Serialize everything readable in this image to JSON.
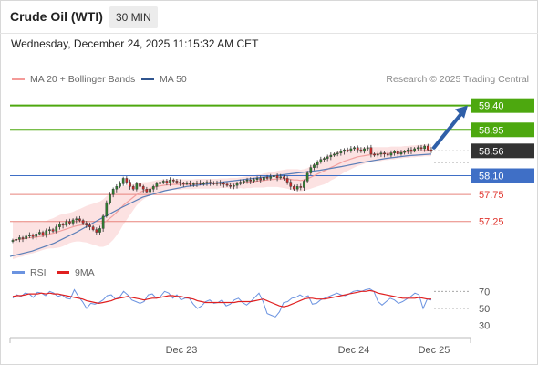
{
  "header": {
    "instrument": "Crude Oil (WTI)",
    "timeframe": "30 MIN",
    "datetime": "Wednesday, December 24, 2025 11:15:32 AM CET"
  },
  "legend": {
    "ma20_bb": "MA 20 + Bollinger Bands",
    "ma50": "MA 50",
    "credit": "Research © 2025 Trading Central"
  },
  "rsi_legend": {
    "rsi": "RSI",
    "ma9": "9MA"
  },
  "colors": {
    "green": "#4da80f",
    "blue_line": "#3f6fc6",
    "red_line": "#e8837c",
    "candle_up": "#2f7d2f",
    "candle_down": "#c62828",
    "bb_fill": "#fbd5d5",
    "ma20": "#f2a0a0",
    "ma50": "#5b7fb8",
    "rsi": "#6b93e0",
    "rsi_ma": "#e02020",
    "arrow": "#2f5fa8",
    "current_box": "#333333"
  },
  "chart_data": [
    {
      "type": "candlestick",
      "title": "Crude Oil (WTI)",
      "timeframe": "30 MIN",
      "x_labels": [
        "Dec 23",
        "Dec 24",
        "Dec 25"
      ],
      "ylim": [
        56.45,
        59.75
      ],
      "current_price": 58.56,
      "levels": [
        {
          "value": 59.4,
          "label": "59.40",
          "color": "#4da80f",
          "kind": "target"
        },
        {
          "value": 58.95,
          "label": "58.95",
          "color": "#4da80f",
          "kind": "target"
        },
        {
          "value": 58.56,
          "label": "58.56",
          "color": "#333333",
          "kind": "current"
        },
        {
          "value": 58.1,
          "label": "58.10",
          "color": "#3f6fc6",
          "kind": "pivot"
        },
        {
          "value": 57.75,
          "label": "57.75",
          "color": "#e8837c",
          "kind": "support"
        },
        {
          "value": 57.25,
          "label": "57.25",
          "color": "#e8837c",
          "kind": "support"
        }
      ],
      "arrow": {
        "from": 58.62,
        "to": 59.4,
        "direction": "up"
      },
      "closes": [
        56.9,
        56.92,
        56.95,
        56.93,
        56.98,
        57.0,
        56.97,
        57.02,
        57.05,
        57.0,
        57.08,
        57.1,
        57.07,
        57.15,
        57.2,
        57.18,
        57.25,
        57.22,
        57.28,
        57.3,
        57.27,
        57.22,
        57.18,
        57.15,
        57.1,
        57.05,
        57.12,
        57.35,
        57.6,
        57.75,
        57.85,
        57.9,
        57.95,
        58.05,
        57.98,
        57.9,
        57.85,
        57.95,
        57.9,
        57.85,
        57.8,
        57.85,
        57.9,
        57.95,
        57.98,
        58.0,
        57.97,
        58.02,
        58.0,
        57.98,
        57.96,
        57.95,
        57.96,
        57.94,
        57.95,
        57.97,
        57.95,
        57.96,
        57.98,
        57.97,
        57.95,
        57.97,
        57.96,
        57.94,
        57.92,
        57.9,
        57.92,
        57.95,
        57.98,
        58.0,
        58.02,
        58.0,
        58.03,
        58.05,
        58.02,
        58.07,
        58.05,
        58.08,
        58.1,
        58.06,
        58.08,
        58.05,
        57.98,
        57.9,
        57.85,
        57.9,
        57.88,
        58.0,
        58.15,
        58.25,
        58.3,
        58.35,
        58.4,
        58.42,
        58.45,
        58.48,
        58.5,
        58.52,
        58.55,
        58.58,
        58.56,
        58.6,
        58.62,
        58.58,
        58.55,
        58.6,
        58.62,
        58.5,
        58.48,
        58.5,
        58.52,
        58.5,
        58.48,
        58.52,
        58.55,
        58.5,
        58.53,
        58.55,
        58.58,
        58.56,
        58.6,
        58.62,
        58.6,
        58.65,
        58.58,
        58.56
      ],
      "ma20": [
        56.9,
        56.91,
        56.92,
        56.92,
        56.94,
        56.95,
        56.95,
        56.96,
        56.97,
        56.98,
        57.0,
        57.02,
        57.03,
        57.05,
        57.07,
        57.09,
        57.11,
        57.13,
        57.15,
        57.17,
        57.18,
        57.19,
        57.2,
        57.2,
        57.2,
        57.2,
        57.2,
        57.22,
        57.26,
        57.31,
        57.36,
        57.42,
        57.48,
        57.55,
        57.6,
        57.65,
        57.7,
        57.75,
        57.79,
        57.82,
        57.84,
        57.86,
        57.88,
        57.9,
        57.91,
        57.92,
        57.93,
        57.93,
        57.94,
        57.94,
        57.94,
        57.94,
        57.94,
        57.94,
        57.94,
        57.95,
        57.95,
        57.95,
        57.95,
        57.95,
        57.95,
        57.95,
        57.96,
        57.96,
        57.96,
        57.96,
        57.96,
        57.96,
        57.97,
        57.97,
        57.98,
        57.98,
        57.99,
        58.0,
        58.0,
        58.01,
        58.02,
        58.03,
        58.03,
        58.04,
        58.04,
        58.04,
        58.04,
        58.03,
        58.02,
        58.02,
        58.01,
        58.02,
        58.04,
        58.07,
        58.1,
        58.13,
        58.16,
        58.19,
        58.22,
        58.25,
        58.28,
        58.31,
        58.34,
        58.37,
        58.39,
        58.41,
        58.43,
        58.45,
        58.46,
        58.47,
        58.48,
        58.49,
        58.5,
        58.5,
        58.5,
        58.51,
        58.51,
        58.52,
        58.52,
        58.53,
        58.53,
        58.54,
        58.54,
        58.55,
        58.55,
        58.56,
        58.56,
        58.57,
        58.57,
        58.57
      ],
      "bb_width": [
        0.35,
        0.34,
        0.33,
        0.32,
        0.31,
        0.3,
        0.29,
        0.28,
        0.27,
        0.26,
        0.26,
        0.27,
        0.28,
        0.29,
        0.3,
        0.3,
        0.29,
        0.28,
        0.28,
        0.29,
        0.3,
        0.32,
        0.34,
        0.36,
        0.38,
        0.4,
        0.42,
        0.44,
        0.46,
        0.46,
        0.45,
        0.43,
        0.4,
        0.36,
        0.32,
        0.28,
        0.24,
        0.2,
        0.18,
        0.16,
        0.14,
        0.13,
        0.12,
        0.12,
        0.11,
        0.11,
        0.1,
        0.1,
        0.1,
        0.1,
        0.1,
        0.09,
        0.09,
        0.09,
        0.09,
        0.09,
        0.09,
        0.09,
        0.09,
        0.09,
        0.09,
        0.09,
        0.09,
        0.09,
        0.09,
        0.1,
        0.1,
        0.1,
        0.1,
        0.11,
        0.11,
        0.11,
        0.11,
        0.12,
        0.12,
        0.13,
        0.13,
        0.14,
        0.14,
        0.15,
        0.16,
        0.17,
        0.18,
        0.19,
        0.2,
        0.2,
        0.2,
        0.2,
        0.2,
        0.21,
        0.22,
        0.23,
        0.24,
        0.25,
        0.25,
        0.24,
        0.24,
        0.23,
        0.22,
        0.21,
        0.2,
        0.19,
        0.18,
        0.17,
        0.16,
        0.15,
        0.14,
        0.14,
        0.13,
        0.13,
        0.13,
        0.12,
        0.12,
        0.12,
        0.12,
        0.11,
        0.11,
        0.11,
        0.11,
        0.11,
        0.11,
        0.11,
        0.11,
        0.11,
        0.11,
        0.11
      ],
      "ma50_points": [
        [
          0,
          56.6
        ],
        [
          20,
          56.7
        ],
        [
          40,
          56.85
        ],
        [
          60,
          57.05
        ],
        [
          80,
          57.28
        ],
        [
          100,
          57.5
        ],
        [
          120,
          57.7
        ],
        [
          140,
          57.82
        ],
        [
          160,
          57.9
        ],
        [
          180,
          57.95
        ],
        [
          200,
          58.0
        ],
        [
          220,
          58.05
        ],
        [
          240,
          58.1
        ],
        [
          260,
          58.15
        ],
        [
          280,
          58.2
        ],
        [
          300,
          58.27
        ],
        [
          320,
          58.35
        ],
        [
          340,
          58.42
        ],
        [
          360,
          58.47
        ],
        [
          381,
          58.5
        ]
      ]
    },
    {
      "type": "line",
      "title": "RSI",
      "series": [
        {
          "name": "RSI",
          "values": [
            62,
            66,
            64,
            68,
            67,
            63,
            69,
            68,
            65,
            70,
            68,
            64,
            66,
            62,
            61,
            72,
            64,
            58,
            50,
            56,
            55,
            57,
            60,
            65,
            66,
            61,
            63,
            70,
            66,
            60,
            58,
            56,
            58,
            66,
            67,
            62,
            64,
            70,
            68,
            62,
            66,
            60,
            62,
            62,
            55,
            50,
            53,
            58,
            60,
            56,
            57,
            60,
            53,
            55,
            60,
            62,
            57,
            54,
            58,
            63,
            68,
            58,
            44,
            42,
            40,
            46,
            57,
            58,
            62,
            63,
            66,
            63,
            65,
            55,
            56,
            60,
            62,
            64,
            66,
            68,
            66,
            65,
            67,
            70,
            71,
            70,
            72,
            73,
            70,
            58,
            54,
            58,
            62,
            60,
            56,
            58,
            61,
            64,
            68,
            66,
            50,
            61,
            60
          ]
        },
        {
          "name": "9MA",
          "values": [
            64,
            65,
            65,
            66,
            67,
            67,
            67,
            68,
            67,
            68,
            67,
            67,
            66,
            65,
            64,
            63,
            62,
            61,
            59,
            58,
            57,
            56,
            57,
            58,
            59,
            61,
            62,
            63,
            64,
            63,
            62,
            61,
            60,
            61,
            62,
            62,
            63,
            64,
            65,
            65,
            64,
            64,
            63,
            62,
            61,
            59,
            58,
            57,
            57,
            57,
            57,
            57,
            57,
            57,
            57,
            58,
            58,
            58,
            58,
            59,
            60,
            61,
            59,
            57,
            55,
            53,
            52,
            53,
            55,
            57,
            59,
            61,
            62,
            62,
            61,
            61,
            61,
            62,
            63,
            64,
            65,
            66,
            67,
            68,
            69,
            70,
            70,
            71,
            70,
            68,
            67,
            66,
            65,
            64,
            63,
            62,
            62,
            62,
            62,
            63,
            62,
            61,
            61
          ]
        }
      ],
      "y_ticks": [
        70,
        50,
        30
      ],
      "ylim": [
        20,
        80
      ]
    }
  ]
}
